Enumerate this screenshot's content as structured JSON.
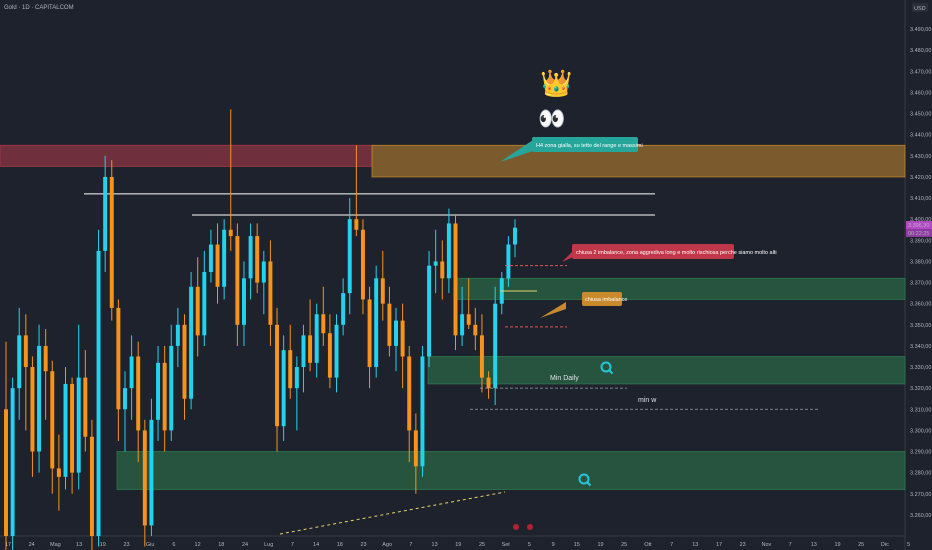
{
  "header": {
    "title": "Gold · 1D · CAPITALCOM",
    "currency": "USD"
  },
  "colors": {
    "bg": "#1e222d",
    "up": "#22d3ee",
    "down": "#f7931a",
    "grid": "#2a2e39"
  },
  "chart_data": {
    "type": "candlestick",
    "ylim": [
      3250,
      3500
    ],
    "y_ticks": [
      "3.490,00",
      "3.480,00",
      "3.470,00",
      "3.460,00",
      "3.450,00",
      "3.440,00",
      "3.430,00",
      "3.420,00",
      "3.410,00",
      "3.400,00",
      "3.390,00",
      "3.380,00",
      "3.370,00",
      "3.360,00",
      "3.350,00",
      "3.340,00",
      "3.330,00",
      "3.320,00",
      "3.310,00",
      "3.300,00",
      "3.290,00",
      "3.280,00",
      "3.270,00",
      "3.260,00"
    ],
    "x_ticks": [
      "17",
      "24",
      "Mag",
      "13",
      "19",
      "23",
      "Giu",
      "6",
      "12",
      "18",
      "24",
      "Lug",
      "7",
      "14",
      "18",
      "23",
      "Ago",
      "7",
      "13",
      "19",
      "25",
      "Set",
      "5",
      "9",
      "15",
      "19",
      "25",
      "Ott",
      "7",
      "13",
      "17",
      "23",
      "Nov",
      "7",
      "13",
      "19",
      "25",
      "Dic",
      "5"
    ],
    "price_badges": [
      "3.396,30",
      "00:22:25"
    ],
    "candles_ohlc": [
      [
        3310,
        3342,
        3240,
        3250
      ],
      [
        3250,
        3325,
        3225,
        3320
      ],
      [
        3320,
        3358,
        3305,
        3345
      ],
      [
        3345,
        3355,
        3300,
        3330
      ],
      [
        3330,
        3335,
        3278,
        3290
      ],
      [
        3290,
        3350,
        3280,
        3340
      ],
      [
        3340,
        3348,
        3305,
        3328
      ],
      [
        3328,
        3333,
        3270,
        3282
      ],
      [
        3282,
        3298,
        3262,
        3278
      ],
      [
        3278,
        3330,
        3272,
        3322
      ],
      [
        3322,
        3325,
        3270,
        3280
      ],
      [
        3280,
        3350,
        3272,
        3325
      ],
      [
        3325,
        3338,
        3290,
        3297
      ],
      [
        3297,
        3305,
        3240,
        3250
      ],
      [
        3250,
        3395,
        3245,
        3385
      ],
      [
        3385,
        3430,
        3375,
        3420
      ],
      [
        3420,
        3428,
        3352,
        3358
      ],
      [
        3358,
        3362,
        3295,
        3310
      ],
      [
        3310,
        3328,
        3290,
        3320
      ],
      [
        3320,
        3345,
        3305,
        3335
      ],
      [
        3335,
        3342,
        3285,
        3300
      ],
      [
        3300,
        3305,
        3245,
        3255
      ],
      [
        3255,
        3315,
        3250,
        3305
      ],
      [
        3305,
        3340,
        3295,
        3332
      ],
      [
        3332,
        3340,
        3290,
        3300
      ],
      [
        3300,
        3350,
        3295,
        3340
      ],
      [
        3340,
        3358,
        3330,
        3350
      ],
      [
        3350,
        3355,
        3305,
        3315
      ],
      [
        3315,
        3375,
        3310,
        3368
      ],
      [
        3368,
        3382,
        3335,
        3345
      ],
      [
        3345,
        3385,
        3340,
        3375
      ],
      [
        3375,
        3395,
        3370,
        3388
      ],
      [
        3388,
        3398,
        3360,
        3368
      ],
      [
        3368,
        3400,
        3362,
        3395
      ],
      [
        3395,
        3452,
        3385,
        3392
      ],
      [
        3392,
        3398,
        3340,
        3350
      ],
      [
        3350,
        3380,
        3340,
        3372
      ],
      [
        3372,
        3398,
        3362,
        3392
      ],
      [
        3392,
        3398,
        3365,
        3370
      ],
      [
        3370,
        3385,
        3355,
        3380
      ],
      [
        3380,
        3390,
        3340,
        3350
      ],
      [
        3350,
        3358,
        3290,
        3302
      ],
      [
        3302,
        3345,
        3295,
        3338
      ],
      [
        3338,
        3350,
        3315,
        3320
      ],
      [
        3320,
        3335,
        3300,
        3330
      ],
      [
        3330,
        3350,
        3318,
        3345
      ],
      [
        3345,
        3362,
        3328,
        3332
      ],
      [
        3332,
        3360,
        3325,
        3355
      ],
      [
        3355,
        3368,
        3340,
        3346
      ],
      [
        3346,
        3355,
        3320,
        3325
      ],
      [
        3325,
        3355,
        3318,
        3350
      ],
      [
        3350,
        3372,
        3345,
        3365
      ],
      [
        3365,
        3410,
        3355,
        3400
      ],
      [
        3400,
        3435,
        3392,
        3395
      ],
      [
        3395,
        3400,
        3355,
        3362
      ],
      [
        3362,
        3368,
        3320,
        3330
      ],
      [
        3330,
        3378,
        3325,
        3372
      ],
      [
        3372,
        3385,
        3352,
        3360
      ],
      [
        3360,
        3368,
        3335,
        3340
      ],
      [
        3340,
        3358,
        3328,
        3352
      ],
      [
        3352,
        3360,
        3320,
        3335
      ],
      [
        3335,
        3340,
        3285,
        3300
      ],
      [
        3300,
        3308,
        3270,
        3283
      ],
      [
        3283,
        3340,
        3278,
        3335
      ],
      [
        3335,
        3385,
        3330,
        3378
      ],
      [
        3378,
        3395,
        3365,
        3380
      ],
      [
        3380,
        3390,
        3362,
        3372
      ],
      [
        3372,
        3405,
        3365,
        3398
      ],
      [
        3398,
        3402,
        3338,
        3345
      ],
      [
        3345,
        3368,
        3340,
        3355
      ],
      [
        3355,
        3372,
        3348,
        3350
      ],
      [
        3350,
        3358,
        3338,
        3345
      ],
      [
        3345,
        3355,
        3318,
        3325
      ],
      [
        3325,
        3328,
        3315,
        3320
      ],
      [
        3320,
        3368,
        3312,
        3360
      ],
      [
        3360,
        3375,
        3355,
        3372
      ],
      [
        3372,
        3392,
        3368,
        3388
      ],
      [
        3388,
        3400,
        3382,
        3396
      ]
    ],
    "zones": [
      {
        "name": "red-zone",
        "from": 3425,
        "to": 3435,
        "color": "#b23a48"
      },
      {
        "name": "h4-yellow-zone",
        "from": 3420,
        "to": 3435,
        "color": "#c98a2e"
      },
      {
        "name": "green-zone-1",
        "from": 3362,
        "to": 3372,
        "color": "#2e7d4f"
      },
      {
        "name": "green-zone-2",
        "from": 3322,
        "to": 3335,
        "color": "#2e7d4f"
      },
      {
        "name": "green-zone-3",
        "from": 3272,
        "to": 3290,
        "color": "#2e7d4f"
      }
    ],
    "levels": [
      3412,
      3402
    ],
    "annotations": {
      "h4": "H4 zona gialla, su tetto del range e massimi",
      "imbalance": "chiusa 2 imbalance, zona aggrediva long e molto rischiosa perche siamo molto alti",
      "chiusa": "chiusa imbalance",
      "min_daily": "Min Daily",
      "min_w": "min w",
      "crown": "👑",
      "eyes": "👀"
    }
  }
}
